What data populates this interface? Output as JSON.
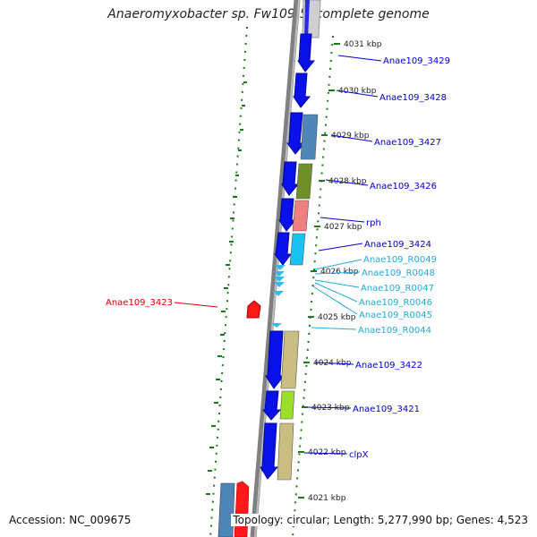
{
  "title": "Anaeromyxobacter sp. Fw109-5, complete genome",
  "footer": {
    "accession": "Accession: NC_009675",
    "topology": "Topology: circular; Length: 5,277,990 bp; Genes: 4,523"
  },
  "colors": {
    "cds_blue": "#0a10e8",
    "ortholog_steelblue": "#4f86b8",
    "ortholog_olive": "#6f8f2a",
    "ortholog_salmon": "#f08080",
    "ortholog_cyan": "#19c2f0",
    "ortholog_khaki": "#c9bd82",
    "ortholog_lime": "#9adf2a",
    "highlight_red": "#ff1a1a",
    "trna_cyan": "#33bbee",
    "backbone_gray": "#808080",
    "tick_green": "#1a7a1a",
    "label_blue": "#0000cc",
    "label_cyan": "#22aadd",
    "label_red": "#dd0000"
  },
  "ruler": [
    "4031 kbp",
    "4030 kbp",
    "4029 kbp",
    "4028 kbp",
    "4027 kbp",
    "4026 kbp",
    "4025 kbp",
    "4024 kbp",
    "4023 kbp",
    "4022 kbp",
    "4021 kbp"
  ],
  "genes": [
    {
      "label": "Anae109_3429",
      "kind": "cds"
    },
    {
      "label": "Anae109_3428",
      "kind": "cds"
    },
    {
      "label": "Anae109_3427",
      "kind": "cds"
    },
    {
      "label": "Anae109_3426",
      "kind": "cds"
    },
    {
      "label": "rph",
      "kind": "cds"
    },
    {
      "label": "Anae109_3424",
      "kind": "cds"
    },
    {
      "label": "Anae109_R0049",
      "kind": "trna"
    },
    {
      "label": "Anae109_R0048",
      "kind": "trna"
    },
    {
      "label": "Anae109_R0047",
      "kind": "trna"
    },
    {
      "label": "Anae109_R0046",
      "kind": "trna"
    },
    {
      "label": "Anae109_R0045",
      "kind": "trna"
    },
    {
      "label": "Anae109_R0044",
      "kind": "trna"
    },
    {
      "label": "Anae109_3422",
      "kind": "cds"
    },
    {
      "label": "Anae109_3421",
      "kind": "cds"
    },
    {
      "label": "clpX",
      "kind": "cds"
    },
    {
      "label": "Anae109_3423",
      "kind": "highlight"
    }
  ]
}
